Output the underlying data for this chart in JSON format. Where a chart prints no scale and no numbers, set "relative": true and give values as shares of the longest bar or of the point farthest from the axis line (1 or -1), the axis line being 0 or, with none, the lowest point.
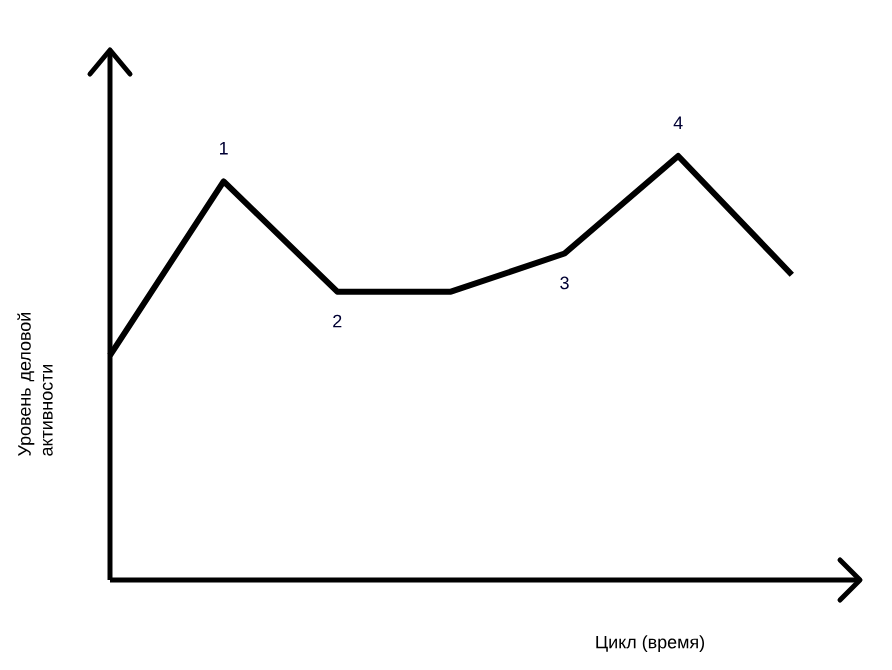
{
  "chart_data": {
    "type": "line",
    "relative": true,
    "xlabel": "Цикл (время)",
    "ylabel": "Уровень деловой активности",
    "categories": [
      null,
      null,
      null,
      null,
      null,
      null,
      null
    ],
    "series": [
      {
        "color": "#000000",
        "values": [
          0.53,
          0.94,
          0.68,
          0.68,
          0.77,
          1,
          0.72
        ]
      }
    ],
    "annotations": [
      {
        "text": "1",
        "y": 0.94
      },
      {
        "text": "2",
        "y": 0.68
      },
      {
        "text": "3",
        "y": 0.77
      },
      {
        "text": "4",
        "y": 1
      }
    ],
    "marker": "none",
    "line_style": "solid"
  }
}
